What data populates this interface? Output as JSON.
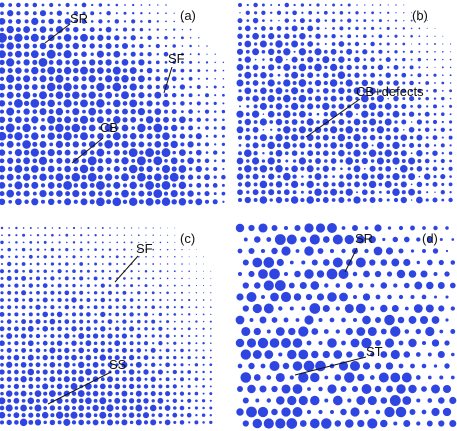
{
  "colors": {
    "dot": "#2e45e2",
    "text": "#111111",
    "background": "#ffffff"
  },
  "panels": [
    {
      "id": "a",
      "panel_label": "(a)",
      "labels": [
        "SR",
        "SF",
        "CB"
      ]
    },
    {
      "id": "b",
      "panel_label": "(b)",
      "labels": [
        "CB+defects"
      ]
    },
    {
      "id": "c",
      "panel_label": "(c)",
      "labels": [
        "SF",
        "SS"
      ]
    },
    {
      "id": "d",
      "panel_label": "(d)",
      "labels": [
        "SR",
        "ST"
      ]
    }
  ]
}
